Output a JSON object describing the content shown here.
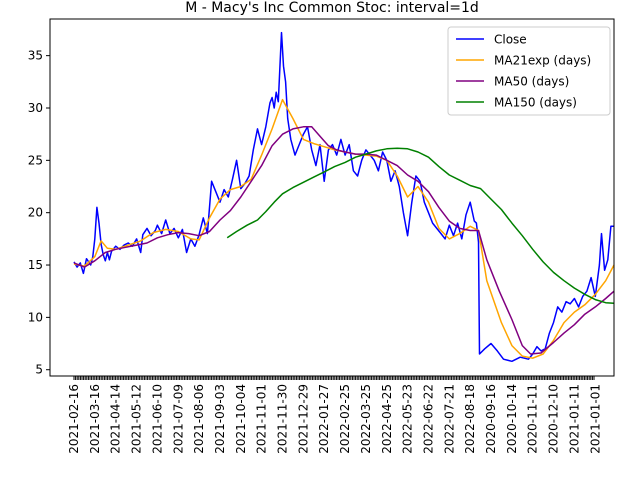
{
  "chart_data": {
    "type": "line",
    "title": "M - Macy's Inc Common Stoc: interval=1d",
    "xlabel": "",
    "ylabel": "",
    "x_tick_labels": [
      "2021-02-16",
      "2021-03-16",
      "2021-04-14",
      "2021-05-12",
      "2021-06-10",
      "2021-07-09",
      "2021-08-06",
      "2021-09-03",
      "2021-10-04",
      "2021-11-01",
      "2021-11-30",
      "2021-12-29",
      "2022-01-27",
      "2022-02-25",
      "2022-03-25",
      "2022-04-25",
      "2022-05-23",
      "2022-06-22",
      "2022-07-21",
      "2022-08-18",
      "2020-09-16",
      "2020-10-14",
      "2020-11-11",
      "2020-12-10",
      "2021-01-11",
      "2021-01-01"
    ],
    "ylim": [
      4.4,
      38.5
    ],
    "y_ticks": [
      5,
      10,
      15,
      20,
      25,
      30,
      35
    ],
    "grid": false,
    "legend_position": "top-right",
    "series": [
      {
        "name": "Close",
        "color": "#0000ff",
        "points": [
          [
            0,
            15.3
          ],
          [
            0.15,
            14.8
          ],
          [
            0.3,
            15.2
          ],
          [
            0.45,
            14.2
          ],
          [
            0.6,
            15.6
          ],
          [
            0.8,
            15.0
          ],
          [
            0.9,
            15.8
          ],
          [
            1.0,
            17.5
          ],
          [
            1.1,
            20.5
          ],
          [
            1.2,
            19.0
          ],
          [
            1.3,
            17.0
          ],
          [
            1.4,
            16.0
          ],
          [
            1.5,
            15.4
          ],
          [
            1.6,
            16.2
          ],
          [
            1.7,
            15.5
          ],
          [
            1.8,
            16.3
          ],
          [
            2.0,
            16.8
          ],
          [
            2.2,
            16.5
          ],
          [
            2.4,
            16.9
          ],
          [
            2.6,
            17.1
          ],
          [
            2.8,
            16.8
          ],
          [
            3.0,
            17.5
          ],
          [
            3.2,
            16.2
          ],
          [
            3.3,
            17.9
          ],
          [
            3.5,
            18.5
          ],
          [
            3.7,
            17.8
          ],
          [
            3.9,
            18.3
          ],
          [
            4.0,
            18.8
          ],
          [
            4.2,
            18.0
          ],
          [
            4.4,
            19.3
          ],
          [
            4.6,
            18.0
          ],
          [
            4.8,
            18.5
          ],
          [
            5.0,
            17.6
          ],
          [
            5.2,
            18.4
          ],
          [
            5.4,
            16.2
          ],
          [
            5.6,
            17.5
          ],
          [
            5.8,
            16.8
          ],
          [
            6.0,
            17.9
          ],
          [
            6.2,
            19.5
          ],
          [
            6.4,
            18.0
          ],
          [
            6.6,
            23.0
          ],
          [
            6.8,
            22.0
          ],
          [
            7.0,
            21.0
          ],
          [
            7.2,
            22.2
          ],
          [
            7.4,
            21.5
          ],
          [
            7.6,
            23.2
          ],
          [
            7.8,
            25.0
          ],
          [
            8.0,
            22.3
          ],
          [
            8.2,
            22.8
          ],
          [
            8.4,
            23.5
          ],
          [
            8.6,
            26.0
          ],
          [
            8.8,
            28.0
          ],
          [
            9.0,
            26.5
          ],
          [
            9.2,
            28.2
          ],
          [
            9.4,
            30.5
          ],
          [
            9.5,
            31.0
          ],
          [
            9.6,
            30.0
          ],
          [
            9.7,
            31.5
          ],
          [
            9.8,
            30.6
          ],
          [
            9.95,
            37.2
          ],
          [
            10.05,
            34.0
          ],
          [
            10.15,
            32.5
          ],
          [
            10.25,
            29.0
          ],
          [
            10.4,
            27.0
          ],
          [
            10.6,
            25.5
          ],
          [
            10.8,
            26.5
          ],
          [
            11.0,
            27.5
          ],
          [
            11.2,
            28.2
          ],
          [
            11.4,
            26.0
          ],
          [
            11.6,
            24.5
          ],
          [
            11.8,
            26.5
          ],
          [
            12.0,
            23.0
          ],
          [
            12.2,
            26.0
          ],
          [
            12.4,
            26.5
          ],
          [
            12.6,
            25.5
          ],
          [
            12.8,
            27.0
          ],
          [
            13.0,
            25.5
          ],
          [
            13.2,
            26.5
          ],
          [
            13.4,
            24.0
          ],
          [
            13.6,
            23.5
          ],
          [
            13.8,
            25.0
          ],
          [
            14.0,
            26.0
          ],
          [
            14.2,
            25.5
          ],
          [
            14.4,
            25.0
          ],
          [
            14.6,
            24.0
          ],
          [
            14.8,
            25.8
          ],
          [
            15.0,
            25.0
          ],
          [
            15.2,
            23.0
          ],
          [
            15.4,
            24.0
          ],
          [
            15.6,
            22.5
          ],
          [
            15.8,
            20.0
          ],
          [
            16.0,
            17.8
          ],
          [
            16.2,
            21.0
          ],
          [
            16.4,
            23.5
          ],
          [
            16.6,
            23.0
          ],
          [
            16.8,
            21.0
          ],
          [
            17.0,
            20.0
          ],
          [
            17.2,
            19.0
          ],
          [
            17.4,
            18.5
          ],
          [
            17.6,
            18.0
          ],
          [
            17.8,
            17.5
          ],
          [
            18.0,
            18.8
          ],
          [
            18.2,
            17.8
          ],
          [
            18.4,
            19.0
          ],
          [
            18.6,
            17.5
          ],
          [
            18.8,
            19.8
          ],
          [
            19.0,
            21.0
          ],
          [
            19.2,
            19.2
          ],
          [
            19.3,
            19.0
          ],
          [
            19.4,
            17.2
          ],
          [
            19.45,
            6.5
          ],
          [
            19.7,
            7.0
          ],
          [
            20.0,
            7.5
          ],
          [
            20.3,
            6.8
          ],
          [
            20.6,
            6.0
          ],
          [
            21.0,
            5.8
          ],
          [
            21.4,
            6.2
          ],
          [
            21.8,
            6.0
          ],
          [
            22.0,
            6.5
          ],
          [
            22.2,
            7.2
          ],
          [
            22.4,
            6.8
          ],
          [
            22.6,
            7.0
          ],
          [
            22.8,
            8.5
          ],
          [
            23.0,
            9.5
          ],
          [
            23.2,
            11.0
          ],
          [
            23.4,
            10.5
          ],
          [
            23.6,
            11.5
          ],
          [
            23.8,
            11.3
          ],
          [
            24.0,
            11.8
          ],
          [
            24.2,
            11.0
          ],
          [
            24.4,
            12.0
          ],
          [
            24.6,
            12.5
          ],
          [
            24.8,
            13.8
          ],
          [
            25.0,
            12.0
          ],
          [
            25.2,
            15.0
          ],
          [
            25.3,
            18.0
          ],
          [
            25.45,
            14.5
          ],
          [
            25.6,
            15.5
          ],
          [
            25.75,
            18.7
          ],
          [
            25.9,
            18.7
          ]
        ]
      },
      {
        "name": "MA21exp (days)",
        "color": "#ffa500",
        "points": [
          [
            0,
            15.1
          ],
          [
            0.5,
            14.9
          ],
          [
            1.0,
            15.8
          ],
          [
            1.3,
            17.3
          ],
          [
            1.6,
            16.6
          ],
          [
            2.0,
            16.5
          ],
          [
            2.6,
            16.9
          ],
          [
            3.2,
            17.3
          ],
          [
            3.8,
            18.1
          ],
          [
            4.4,
            18.4
          ],
          [
            5.0,
            18.2
          ],
          [
            5.6,
            17.5
          ],
          [
            6.0,
            17.4
          ],
          [
            6.5,
            19.5
          ],
          [
            7.0,
            21.3
          ],
          [
            7.5,
            22.2
          ],
          [
            8.0,
            22.5
          ],
          [
            8.5,
            23.2
          ],
          [
            9.0,
            25.5
          ],
          [
            9.5,
            28.0
          ],
          [
            10.0,
            30.8
          ],
          [
            10.5,
            29.0
          ],
          [
            11.0,
            27.0
          ],
          [
            11.5,
            26.6
          ],
          [
            12.0,
            26.3
          ],
          [
            12.5,
            26.0
          ],
          [
            13.0,
            25.8
          ],
          [
            13.5,
            25.6
          ],
          [
            14.0,
            25.5
          ],
          [
            14.5,
            25.4
          ],
          [
            15.0,
            25.0
          ],
          [
            15.5,
            23.5
          ],
          [
            16.0,
            21.5
          ],
          [
            16.5,
            22.5
          ],
          [
            17.0,
            21.0
          ],
          [
            17.5,
            18.5
          ],
          [
            18.0,
            17.5
          ],
          [
            18.5,
            18.0
          ],
          [
            19.0,
            18.7
          ],
          [
            19.4,
            18.3
          ],
          [
            19.8,
            13.5
          ],
          [
            20.5,
            9.5
          ],
          [
            21.0,
            7.3
          ],
          [
            21.5,
            6.3
          ],
          [
            22.0,
            6.1
          ],
          [
            22.5,
            6.5
          ],
          [
            23.0,
            7.8
          ],
          [
            23.5,
            9.5
          ],
          [
            24.0,
            10.5
          ],
          [
            24.5,
            11.2
          ],
          [
            25.0,
            12.2
          ],
          [
            25.5,
            13.5
          ],
          [
            25.9,
            15.0
          ]
        ]
      },
      {
        "name": "MA50 (days)",
        "color": "#800080",
        "points": [
          [
            0,
            15.2
          ],
          [
            0.5,
            14.8
          ],
          [
            1.0,
            15.4
          ],
          [
            1.5,
            16.2
          ],
          [
            2.0,
            16.5
          ],
          [
            2.5,
            16.7
          ],
          [
            3.0,
            16.9
          ],
          [
            3.5,
            17.1
          ],
          [
            4.0,
            17.6
          ],
          [
            4.5,
            17.9
          ],
          [
            5.0,
            18.1
          ],
          [
            5.5,
            18.0
          ],
          [
            6.0,
            17.8
          ],
          [
            6.5,
            18.2
          ],
          [
            7.0,
            19.3
          ],
          [
            7.5,
            20.2
          ],
          [
            8.0,
            21.5
          ],
          [
            8.5,
            23.0
          ],
          [
            9.0,
            24.5
          ],
          [
            9.5,
            26.4
          ],
          [
            10.0,
            27.5
          ],
          [
            10.5,
            28.0
          ],
          [
            11.0,
            28.2
          ],
          [
            11.4,
            28.2
          ],
          [
            11.8,
            27.3
          ],
          [
            12.2,
            26.4
          ],
          [
            12.6,
            26.0
          ],
          [
            13.0,
            25.8
          ],
          [
            13.5,
            25.6
          ],
          [
            14.0,
            25.6
          ],
          [
            14.5,
            25.5
          ],
          [
            15.0,
            25.0
          ],
          [
            15.5,
            24.5
          ],
          [
            16.0,
            23.6
          ],
          [
            16.5,
            23.0
          ],
          [
            17.0,
            22.0
          ],
          [
            17.5,
            20.5
          ],
          [
            18.0,
            19.2
          ],
          [
            18.5,
            18.5
          ],
          [
            19.0,
            18.3
          ],
          [
            19.4,
            18.3
          ],
          [
            19.8,
            15.5
          ],
          [
            20.4,
            12.5
          ],
          [
            21.0,
            9.8
          ],
          [
            21.5,
            7.3
          ],
          [
            21.9,
            6.5
          ],
          [
            22.4,
            6.6
          ],
          [
            23.0,
            7.6
          ],
          [
            23.5,
            8.5
          ],
          [
            24.0,
            9.3
          ],
          [
            24.5,
            10.3
          ],
          [
            25.0,
            11.0
          ],
          [
            25.5,
            11.8
          ],
          [
            25.9,
            12.5
          ]
        ]
      },
      {
        "name": "MA150 (days)",
        "color": "#008000",
        "points": [
          [
            7.35,
            17.6
          ],
          [
            7.8,
            18.2
          ],
          [
            8.3,
            18.8
          ],
          [
            8.8,
            19.3
          ],
          [
            9.2,
            20.1
          ],
          [
            9.6,
            21.0
          ],
          [
            10.0,
            21.8
          ],
          [
            10.5,
            22.4
          ],
          [
            11.0,
            22.9
          ],
          [
            11.5,
            23.4
          ],
          [
            12.0,
            23.9
          ],
          [
            12.5,
            24.4
          ],
          [
            13.0,
            24.8
          ],
          [
            13.5,
            25.3
          ],
          [
            14.0,
            25.6
          ],
          [
            14.5,
            25.9
          ],
          [
            15.0,
            26.1
          ],
          [
            15.5,
            26.15
          ],
          [
            16.0,
            26.1
          ],
          [
            16.5,
            25.8
          ],
          [
            17.0,
            25.3
          ],
          [
            17.5,
            24.4
          ],
          [
            18.0,
            23.6
          ],
          [
            18.5,
            23.1
          ],
          [
            19.0,
            22.6
          ],
          [
            19.5,
            22.3
          ],
          [
            20.0,
            21.3
          ],
          [
            20.5,
            20.3
          ],
          [
            21.0,
            19.0
          ],
          [
            21.5,
            17.8
          ],
          [
            22.0,
            16.5
          ],
          [
            22.5,
            15.3
          ],
          [
            23.0,
            14.3
          ],
          [
            23.5,
            13.5
          ],
          [
            24.0,
            12.8
          ],
          [
            24.5,
            12.2
          ],
          [
            25.0,
            11.7
          ],
          [
            25.5,
            11.4
          ],
          [
            25.9,
            11.35
          ]
        ]
      }
    ]
  }
}
